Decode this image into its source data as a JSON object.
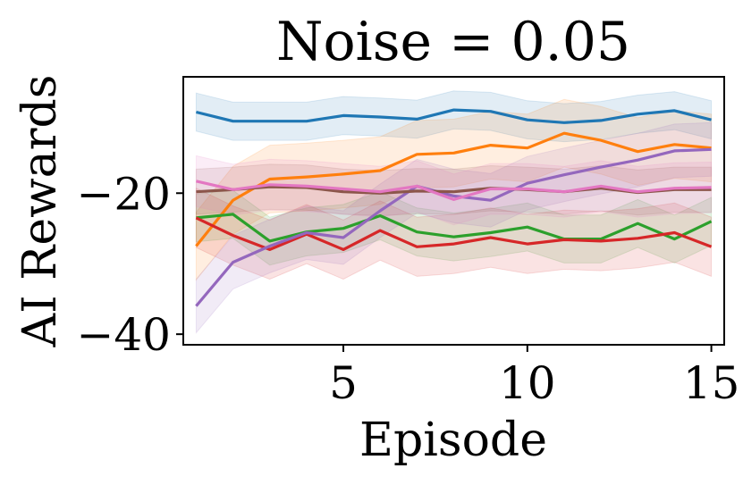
{
  "chart_data": {
    "type": "line",
    "title": "Noise = 0.05",
    "xlabel": "Episode",
    "ylabel": "AI Rewards",
    "xlim": [
      0.65,
      15.35
    ],
    "ylim": [
      -41.5,
      -3.5
    ],
    "x_ticks": [
      5,
      10,
      15
    ],
    "x_tick_labels": [
      "5",
      "10",
      "15"
    ],
    "y_ticks": [
      -20,
      -40
    ],
    "y_tick_labels": [
      "−20",
      "−40"
    ],
    "grid": false,
    "legend": "none",
    "x": [
      1,
      2,
      3,
      4,
      5,
      6,
      7,
      8,
      9,
      10,
      11,
      12,
      13,
      14,
      15
    ],
    "series": [
      {
        "name": "blue",
        "color": "#1f77b4",
        "values": [
          -8.5,
          -9.8,
          -9.8,
          -9.8,
          -9.0,
          -9.2,
          -9.5,
          -8.2,
          -8.4,
          -9.6,
          -10.0,
          -9.7,
          -8.8,
          -8.3,
          -9.6
        ],
        "band": 2.7
      },
      {
        "name": "orange",
        "color": "#ff7f0e",
        "values": [
          -27.5,
          -21.0,
          -18.0,
          -17.7,
          -17.3,
          -16.8,
          -14.5,
          -14.3,
          -13.2,
          -13.6,
          -11.5,
          -12.5,
          -14.1,
          -13.1,
          -13.6
        ],
        "band": 4.8
      },
      {
        "name": "green",
        "color": "#2ca02c",
        "values": [
          -23.5,
          -23.0,
          -26.8,
          -25.5,
          -25.0,
          -23.2,
          -25.5,
          -26.2,
          -25.6,
          -24.8,
          -26.5,
          -26.5,
          -24.3,
          -26.5,
          -24.0
        ],
        "band": 3.4
      },
      {
        "name": "red",
        "color": "#d62728",
        "values": [
          -23.5,
          -26.0,
          -28.0,
          -25.8,
          -28.0,
          -25.3,
          -27.6,
          -27.2,
          -26.3,
          -27.2,
          -26.6,
          -26.8,
          -26.4,
          -25.6,
          -27.6
        ],
        "band": 4.2
      },
      {
        "name": "purple",
        "color": "#9467bd",
        "values": [
          -36.0,
          -29.8,
          -27.5,
          -25.6,
          -26.3,
          -22.5,
          -19.0,
          -20.4,
          -21.0,
          -18.6,
          -17.4,
          -16.3,
          -15.3,
          -14.0,
          -13.8
        ],
        "band": 3.8
      },
      {
        "name": "brown",
        "color": "#8c564b",
        "values": [
          -19.8,
          -19.5,
          -19.1,
          -19.2,
          -19.8,
          -20.0,
          -19.7,
          -19.8,
          -19.3,
          -19.5,
          -19.8,
          -19.3,
          -19.9,
          -19.5,
          -19.5
        ],
        "band": 3.2
      },
      {
        "name": "pink",
        "color": "#e377c2",
        "values": [
          -18.3,
          -19.5,
          -18.8,
          -19.0,
          -19.4,
          -19.8,
          -19.0,
          -20.9,
          -19.4,
          -19.4,
          -19.8,
          -19.0,
          -19.8,
          -19.3,
          -19.2
        ],
        "band": 3.6
      }
    ]
  }
}
